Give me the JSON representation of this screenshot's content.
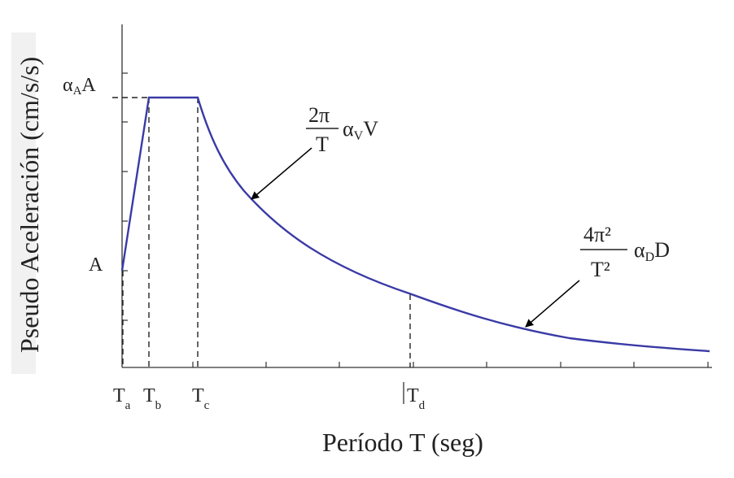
{
  "diagram": {
    "ylabel": "Pseudo Aceleración (cm/s/s)",
    "xlabel": "Período T (seg)",
    "y_ticks": {
      "alpha_A_A": "αAA",
      "A": "A"
    },
    "x_ticks": {
      "Ta": "Ta",
      "Tb": "Tb",
      "Tc": "Tc",
      "Td": "Td"
    },
    "annotations": {
      "velocity_formula": {
        "numerator": "2π",
        "denominator": "T",
        "factor": "αVV"
      },
      "displacement_formula": {
        "numerator": "4π²",
        "denominator": "T²",
        "factor": "αDD"
      }
    },
    "colors": {
      "curve": "#3a3aa6",
      "axes": "#333333"
    }
  }
}
